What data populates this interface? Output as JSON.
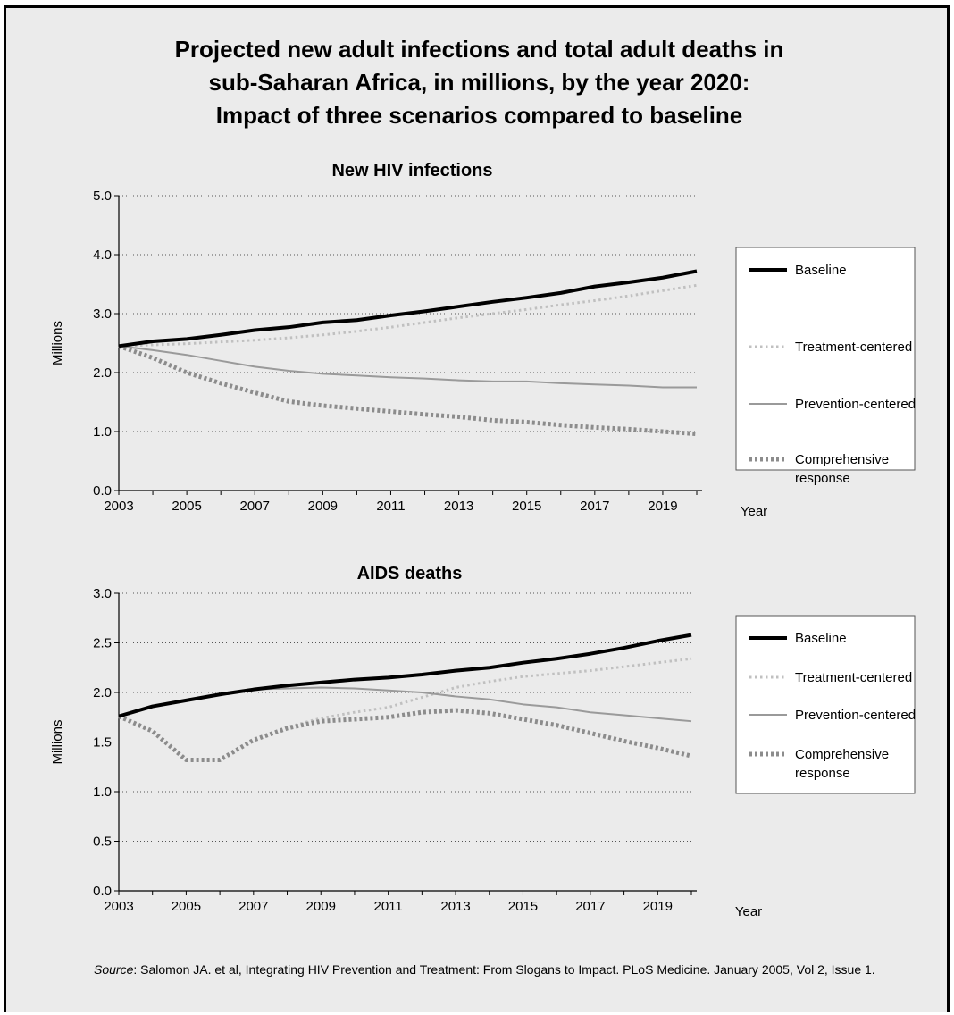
{
  "title_lines": [
    "Projected new adult infections and total adult deaths in",
    "sub-Saharan Africa, in millions, by the year 2020:",
    "Impact of three scenarios compared to baseline"
  ],
  "source": {
    "label": "Source",
    "text": ": Salomon JA. et al, Integrating HIV Prevention and Treatment: From Slogans to Impact. PLoS Medicine. January 2005, Vol 2, Issue 1."
  },
  "styles": {
    "Baseline": {
      "color": "#000000",
      "dash": "none"
    },
    "Treatment-centered": {
      "color": "#c0c0c0",
      "dash": "dotted"
    },
    "Prevention-centered": {
      "color": "#9a9a9a",
      "dash": "none"
    },
    "Comprehensive response": {
      "color": "#8c8c8c",
      "dash": "dotted"
    }
  },
  "chart_data": [
    {
      "type": "line",
      "title": "New HIV infections",
      "ylabel": "Millions",
      "xlabel": "Year",
      "ylim": [
        0,
        5
      ],
      "yticks": [
        "0.0",
        "1.0",
        "2.0",
        "3.0",
        "4.0",
        "5.0"
      ],
      "xticks": [
        "2003",
        "2005",
        "2007",
        "2009",
        "2011",
        "2013",
        "2015",
        "2017",
        "2019"
      ],
      "grid": true,
      "legend_position": "right",
      "x": [
        2003,
        2004,
        2005,
        2006,
        2007,
        2008,
        2009,
        2010,
        2011,
        2012,
        2013,
        2014,
        2015,
        2016,
        2017,
        2018,
        2019,
        2020
      ],
      "series": [
        {
          "name": "Baseline",
          "values": [
            2.45,
            2.53,
            2.57,
            2.64,
            2.72,
            2.77,
            2.85,
            2.89,
            2.97,
            3.04,
            3.12,
            3.2,
            3.27,
            3.35,
            3.46,
            3.53,
            3.61,
            3.72
          ]
        },
        {
          "name": "Treatment-centered",
          "values": [
            2.45,
            2.47,
            2.49,
            2.52,
            2.55,
            2.59,
            2.64,
            2.7,
            2.77,
            2.85,
            2.93,
            3.0,
            3.07,
            3.15,
            3.22,
            3.3,
            3.39,
            3.48
          ]
        },
        {
          "name": "Prevention-centered",
          "values": [
            2.45,
            2.38,
            2.3,
            2.2,
            2.1,
            2.03,
            1.98,
            1.95,
            1.92,
            1.9,
            1.87,
            1.85,
            1.85,
            1.82,
            1.8,
            1.78,
            1.75,
            1.75
          ]
        },
        {
          "name": "Comprehensive response",
          "values": [
            2.45,
            2.25,
            2.0,
            1.82,
            1.66,
            1.51,
            1.44,
            1.39,
            1.34,
            1.29,
            1.25,
            1.19,
            1.16,
            1.11,
            1.07,
            1.04,
            1.0,
            0.96
          ]
        }
      ]
    },
    {
      "type": "line",
      "title": "AIDS deaths",
      "ylabel": "Millions",
      "xlabel": "Year",
      "ylim": [
        0,
        3
      ],
      "yticks": [
        "0.0",
        "0.5",
        "1.0",
        "1.5",
        "2.0",
        "2.5",
        "3.0"
      ],
      "xticks": [
        "2003",
        "2005",
        "2007",
        "2009",
        "2011",
        "2013",
        "2015",
        "2017",
        "2019"
      ],
      "grid": true,
      "legend_position": "right",
      "x": [
        2003,
        2004,
        2005,
        2006,
        2007,
        2008,
        2009,
        2010,
        2011,
        2012,
        2013,
        2014,
        2015,
        2016,
        2017,
        2018,
        2019,
        2020
      ],
      "series": [
        {
          "name": "Baseline",
          "values": [
            1.76,
            1.86,
            1.92,
            1.98,
            2.03,
            2.07,
            2.1,
            2.13,
            2.15,
            2.18,
            2.22,
            2.25,
            2.3,
            2.34,
            2.39,
            2.45,
            2.52,
            2.58
          ]
        },
        {
          "name": "Treatment-centered",
          "values": [
            1.76,
            1.61,
            1.32,
            1.32,
            1.52,
            1.65,
            1.74,
            1.8,
            1.85,
            1.95,
            2.05,
            2.11,
            2.16,
            2.19,
            2.22,
            2.26,
            2.3,
            2.34
          ]
        },
        {
          "name": "Prevention-centered",
          "values": [
            1.76,
            1.86,
            1.92,
            1.98,
            2.03,
            2.04,
            2.05,
            2.04,
            2.02,
            2.0,
            1.96,
            1.93,
            1.88,
            1.85,
            1.8,
            1.77,
            1.74,
            1.71
          ]
        },
        {
          "name": "Comprehensive response",
          "values": [
            1.76,
            1.61,
            1.32,
            1.32,
            1.52,
            1.64,
            1.71,
            1.73,
            1.75,
            1.8,
            1.82,
            1.79,
            1.73,
            1.67,
            1.59,
            1.51,
            1.44,
            1.36
          ]
        }
      ]
    }
  ]
}
